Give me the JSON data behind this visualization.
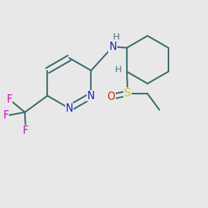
{
  "background_color": "#e8e8e8",
  "bond_color": "#3a6b6b",
  "bond_width": 1.6,
  "atom_colors": {
    "N": "#1a1acc",
    "F": "#cc00cc",
    "S": "#cccc00",
    "O": "#cc2200",
    "H": "#4a7070",
    "C": "#3a6b6b"
  },
  "font_size_atom": 10.5,
  "font_size_H": 9.5,
  "xlim": [
    -1.5,
    3.2
  ],
  "ylim": [
    -2.2,
    2.0
  ]
}
